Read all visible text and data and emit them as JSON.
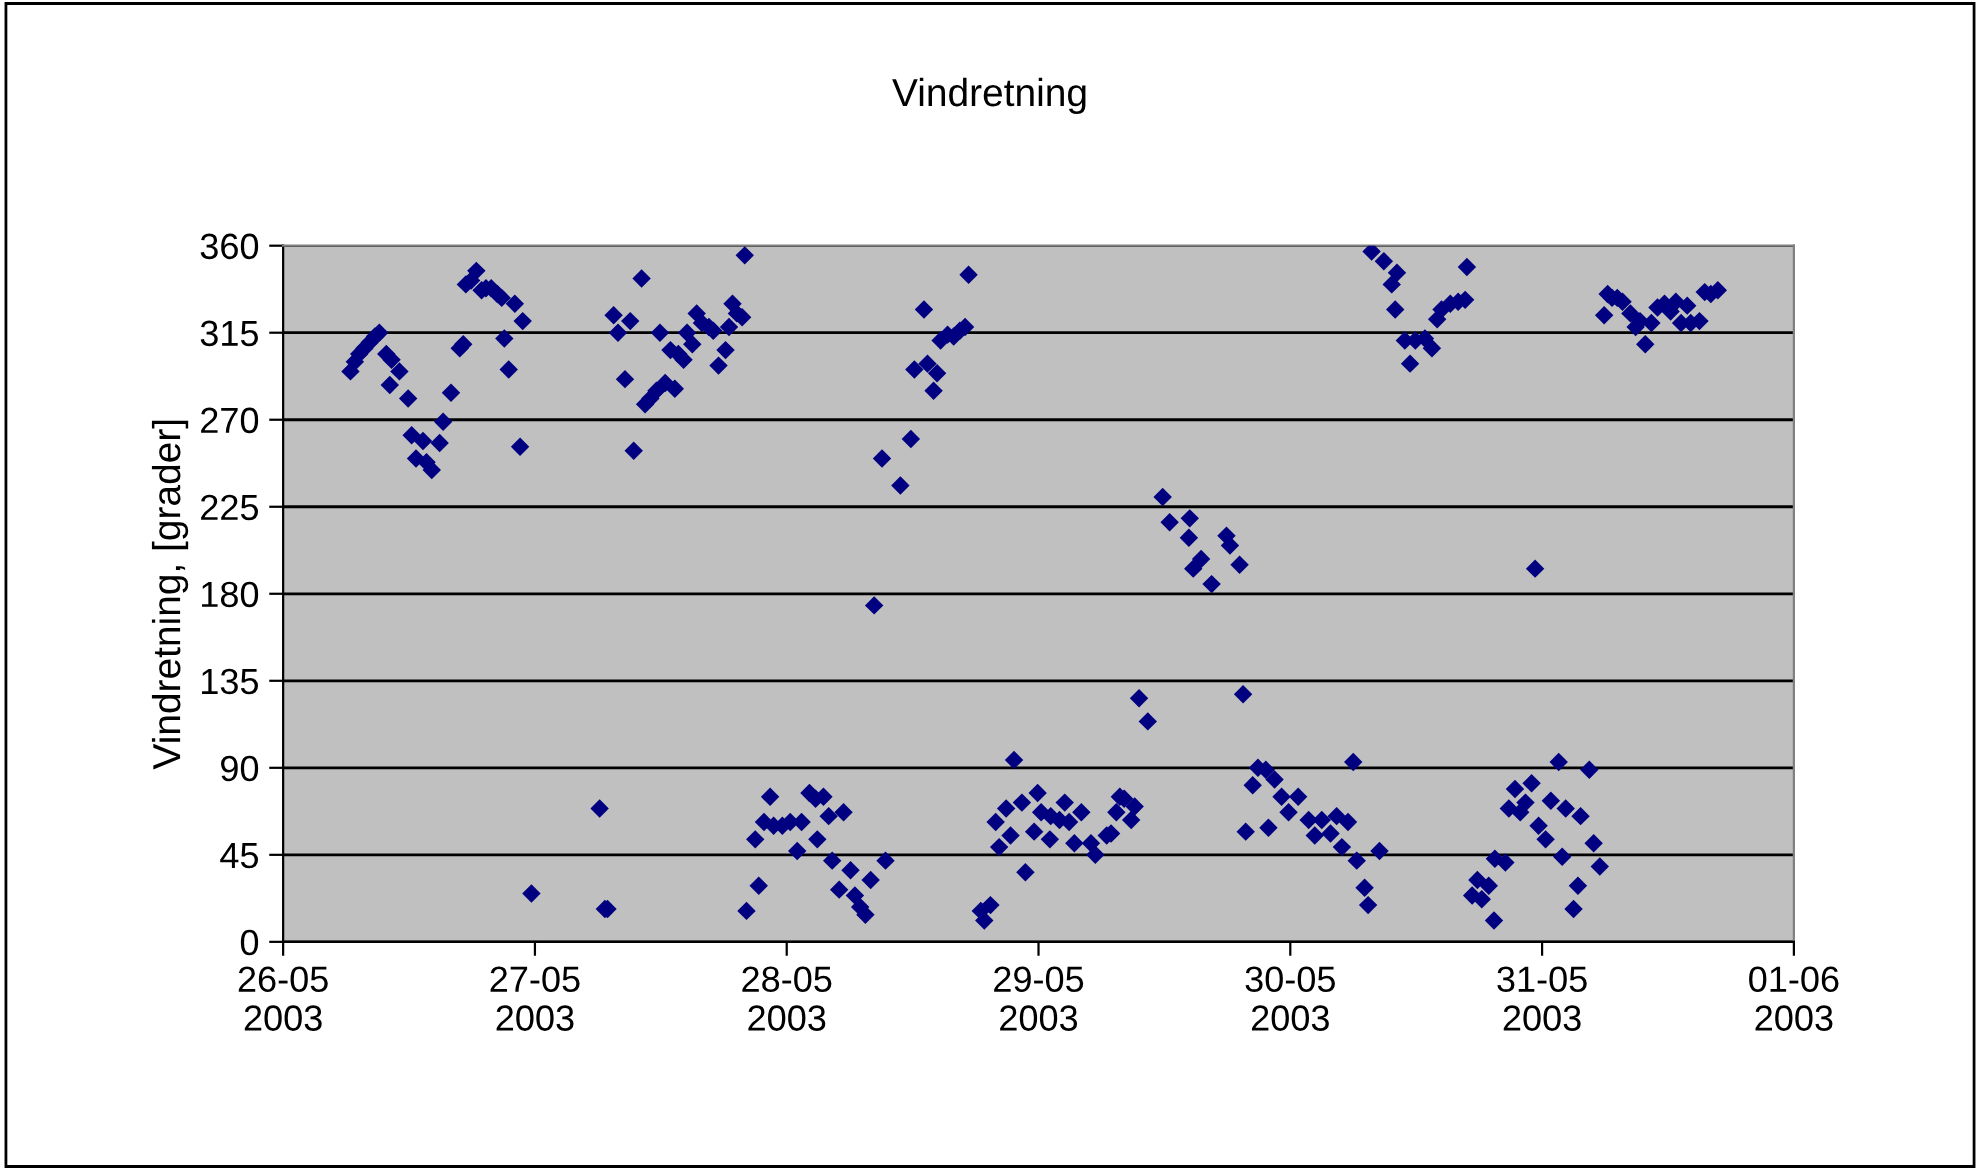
{
  "chart_data": {
    "type": "scatter",
    "title": "Vindretning",
    "ylabel": "Vindretning, [grader]",
    "xlim": [
      "2003-05-26",
      "2003-06-01"
    ],
    "xticks": [
      {
        "value": "2003-05-26",
        "label": "26-05\n2003"
      },
      {
        "value": "2003-05-27",
        "label": "27-05\n2003"
      },
      {
        "value": "2003-05-28",
        "label": "28-05\n2003"
      },
      {
        "value": "2003-05-29",
        "label": "29-05\n2003"
      },
      {
        "value": "2003-05-30",
        "label": "30-05\n2003"
      },
      {
        "value": "2003-05-31",
        "label": "31-05\n2003"
      },
      {
        "value": "2003-06-01",
        "label": "01-06\n2003"
      }
    ],
    "ylim": [
      0,
      360
    ],
    "yticks": [
      0,
      45,
      90,
      135,
      180,
      225,
      270,
      315,
      360
    ],
    "grid": "y",
    "marker": "diamond",
    "legend": false,
    "series": [
      {
        "color": "#000080",
        "x": [
          "2003-05-26T06:25",
          "2003-05-26T06:50",
          "2003-05-26T07:15",
          "2003-05-26T07:45",
          "2003-05-26T08:15",
          "2003-05-26T08:45",
          "2003-05-26T09:10",
          "2003-05-26T09:50",
          "2003-05-26T10:20",
          "2003-05-26T10:10",
          "2003-05-26T11:05",
          "2003-05-26T11:55",
          "2003-05-26T12:15",
          "2003-05-26T12:40",
          "2003-05-26T13:20",
          "2003-05-26T13:40",
          "2003-05-26T14:10",
          "2003-05-26T14:55",
          "2003-05-26T15:15",
          "2003-05-26T16:00",
          "2003-05-26T16:50",
          "2003-05-26T17:10",
          "2003-05-26T17:25",
          "2003-05-26T17:55",
          "2003-05-26T18:25",
          "2003-05-26T18:55",
          "2003-05-26T19:20",
          "2003-05-26T19:50",
          "2003-05-26T20:25",
          "2003-05-26T20:50",
          "2003-05-26T21:05",
          "2003-05-26T21:30",
          "2003-05-26T22:05",
          "2003-05-26T22:35",
          "2003-05-26T22:50",
          "2003-05-26T23:40",
          "2003-05-27T06:10",
          "2003-05-27T06:40",
          "2003-05-27T06:55",
          "2003-05-27T07:30",
          "2003-05-27T07:55",
          "2003-05-27T08:35",
          "2003-05-27T09:05",
          "2003-05-27T09:25",
          "2003-05-27T10:10",
          "2003-05-27T10:30",
          "2003-05-27T11:00",
          "2003-05-27T11:35",
          "2003-05-27T11:55",
          "2003-05-27T12:25",
          "2003-05-27T12:55",
          "2003-05-27T13:20",
          "2003-05-27T13:40",
          "2003-05-27T14:10",
          "2003-05-27T14:30",
          "2003-05-27T15:00",
          "2003-05-27T15:25",
          "2003-05-27T15:55",
          "2003-05-27T16:35",
          "2003-05-27T17:00",
          "2003-05-27T17:30",
          "2003-05-27T18:10",
          "2003-05-27T18:30",
          "2003-05-27T18:50",
          "2003-05-27T19:15",
          "2003-05-27T19:45",
          "2003-05-27T20:00",
          "2003-05-27T20:10",
          "2003-05-27T21:00",
          "2003-05-27T21:20",
          "2003-05-27T21:50",
          "2003-05-27T22:25",
          "2003-05-27T22:45",
          "2003-05-27T23:35",
          "2003-05-28T00:20",
          "2003-05-28T01:00",
          "2003-05-28T01:25",
          "2003-05-28T02:10",
          "2003-05-28T02:45",
          "2003-05-28T02:55",
          "2003-05-28T03:30",
          "2003-05-28T04:00",
          "2003-05-28T04:20",
          "2003-05-28T05:00",
          "2003-05-28T05:25",
          "2003-05-28T06:05",
          "2003-05-28T06:30",
          "2003-05-28T07:00",
          "2003-05-28T07:30",
          "2003-05-28T08:00",
          "2003-05-28T08:20",
          "2003-05-28T09:05",
          "2003-05-28T09:25",
          "2003-05-28T10:50",
          "2003-05-28T11:50",
          "2003-05-28T12:10",
          "2003-05-28T13:05",
          "2003-05-28T13:25",
          "2003-05-28T14:00",
          "2003-05-28T14:20",
          "2003-05-28T14:40",
          "2003-05-28T15:20",
          "2003-05-28T15:55",
          "2003-05-28T16:30",
          "2003-05-28T17:00",
          "2003-05-28T17:20",
          "2003-05-28T18:30",
          "2003-05-28T18:50",
          "2003-05-28T19:25",
          "2003-05-28T19:55",
          "2003-05-28T20:15",
          "2003-05-28T20:55",
          "2003-05-28T21:20",
          "2003-05-28T21:40",
          "2003-05-28T22:25",
          "2003-05-28T22:45",
          "2003-05-28T23:35",
          "2003-05-28T23:55",
          "2003-05-29T00:15",
          "2003-05-29T01:05",
          "2003-05-29T01:10",
          "2003-05-29T02:00",
          "2003-05-29T02:30",
          "2003-05-29T02:55",
          "2003-05-29T03:25",
          "2003-05-29T04:05",
          "2003-05-29T05:00",
          "2003-05-29T05:25",
          "2003-05-29T06:30",
          "2003-05-29T06:55",
          "2003-05-29T07:25",
          "2003-05-29T07:45",
          "2003-05-29T08:10",
          "2003-05-29T08:50",
          "2003-05-29T09:10",
          "2003-05-29T09:35",
          "2003-05-29T10:25",
          "2003-05-29T11:50",
          "2003-05-29T12:30",
          "2003-05-29T14:25",
          "2003-05-29T14:20",
          "2003-05-29T14:45",
          "2003-05-29T15:30",
          "2003-05-29T16:30",
          "2003-05-29T17:55",
          "2003-05-29T18:15",
          "2003-05-29T19:10",
          "2003-05-29T19:30",
          "2003-05-29T19:45",
          "2003-05-29T20:25",
          "2003-05-29T20:55",
          "2003-05-29T21:40",
          "2003-05-29T21:55",
          "2003-05-29T22:30",
          "2003-05-29T23:10",
          "2003-05-29T23:50",
          "2003-05-30T00:45",
          "2003-05-30T01:45",
          "2003-05-30T02:20",
          "2003-05-30T03:00",
          "2003-05-30T03:50",
          "2003-05-30T04:25",
          "2003-05-30T04:55",
          "2003-05-30T05:30",
          "2003-05-30T06:00",
          "2003-05-30T06:20",
          "2003-05-30T07:05",
          "2003-05-30T07:25",
          "2003-05-30T08:30",
          "2003-05-30T07:45",
          "2003-05-30T08:55",
          "2003-05-30T09:40",
          "2003-05-30T10:10",
          "2003-05-30T10:00",
          "2003-05-30T10:55",
          "2003-05-30T11:25",
          "2003-05-30T11:55",
          "2003-05-30T12:50",
          "2003-05-30T13:30",
          "2003-05-30T14:00",
          "2003-05-30T14:25",
          "2003-05-30T15:15",
          "2003-05-30T16:00",
          "2003-05-30T16:40",
          "2003-05-30T16:50",
          "2003-05-30T17:20",
          "2003-05-30T17:50",
          "2003-05-30T18:15",
          "2003-05-30T18:55",
          "2003-05-30T19:25",
          "2003-05-30T19:30",
          "2003-05-30T20:30",
          "2003-05-30T20:50",
          "2003-05-30T21:25",
          "2003-05-30T21:55",
          "2003-05-30T22:25",
          "2003-05-30T23:00",
          "2003-05-30T23:20",
          "2003-05-30T23:40",
          "2003-05-31T00:20",
          "2003-05-31T00:50",
          "2003-05-31T01:35",
          "2003-05-31T01:55",
          "2003-05-31T02:15",
          "2003-05-31T03:00",
          "2003-05-31T03:25",
          "2003-05-31T03:40",
          "2003-05-31T04:30",
          "2003-05-31T04:55",
          "2003-05-31T05:30",
          "2003-05-31T05:55",
          "2003-05-31T06:15",
          "2003-05-31T06:40",
          "2003-05-31T07:10",
          "2003-05-31T07:40",
          "2003-05-31T08:25",
          "2003-05-31T08:55",
          "2003-05-31T09:20",
          "2003-05-31T09:50",
          "2003-05-31T10:25",
          "2003-05-31T11:00",
          "2003-05-31T11:40",
          "2003-05-31T12:15",
          "2003-05-31T12:45",
          "2003-05-31T13:15",
          "2003-05-31T13:50",
          "2003-05-31T14:10",
          "2003-05-31T15:00",
          "2003-05-31T15:30",
          "2003-05-31T16:05",
          "2003-05-31T16:45"
        ],
        "values": [
          295,
          300,
          304,
          307,
          310,
          313,
          315,
          304,
          301,
          288,
          295,
          281,
          262,
          250,
          259,
          248,
          244,
          258,
          269,
          284,
          307,
          309,
          340,
          342,
          347,
          337,
          338,
          338,
          335,
          333,
          312,
          296,
          330,
          256,
          321,
          25,
          69,
          17,
          17,
          324,
          315,
          291,
          321,
          254,
          343,
          278,
          281,
          285,
          315,
          289,
          306,
          286,
          304,
          301,
          315,
          309,
          325,
          320,
          318,
          316,
          298,
          306,
          318,
          330,
          325,
          323,
          355,
          16,
          53,
          29,
          62,
          75,
          60,
          60,
          62,
          47,
          62,
          77,
          74,
          53,
          75,
          65,
          42,
          27,
          67,
          37,
          24,
          18,
          14,
          32,
          174,
          250,
          42,
          236,
          260,
          296,
          327,
          299,
          285,
          294,
          311,
          314,
          313,
          316,
          318,
          345,
          16,
          11,
          19,
          62,
          49,
          69,
          55,
          94,
          72,
          36,
          57,
          77,
          67,
          53,
          65,
          63,
          72,
          62,
          51,
          67,
          51,
          45,
          55,
          56,
          67,
          75,
          74,
          63,
          70,
          126,
          114,
          230,
          217,
          219,
          209,
          193,
          198,
          185,
          210,
          205,
          195,
          128,
          57,
          81,
          90,
          89,
          59,
          84,
          75,
          67,
          75,
          63,
          55,
          63,
          56,
          65,
          49,
          62,
          93,
          42,
          28,
          19,
          47,
          357,
          352,
          340,
          346,
          327,
          311,
          299,
          311,
          312,
          307,
          322,
          327,
          330,
          331,
          332,
          349,
          24,
          32,
          22,
          29,
          11,
          43,
          41,
          69,
          79,
          67,
          72,
          82,
          193,
          60,
          53,
          73,
          93,
          44,
          69,
          17,
          29,
          65,
          89,
          51,
          39,
          324,
          335,
          333,
          333,
          331,
          325,
          318,
          321,
          309,
          320,
          328,
          330,
          326,
          331,
          320,
          329,
          320,
          321,
          336,
          335,
          337
        ]
      }
    ]
  }
}
